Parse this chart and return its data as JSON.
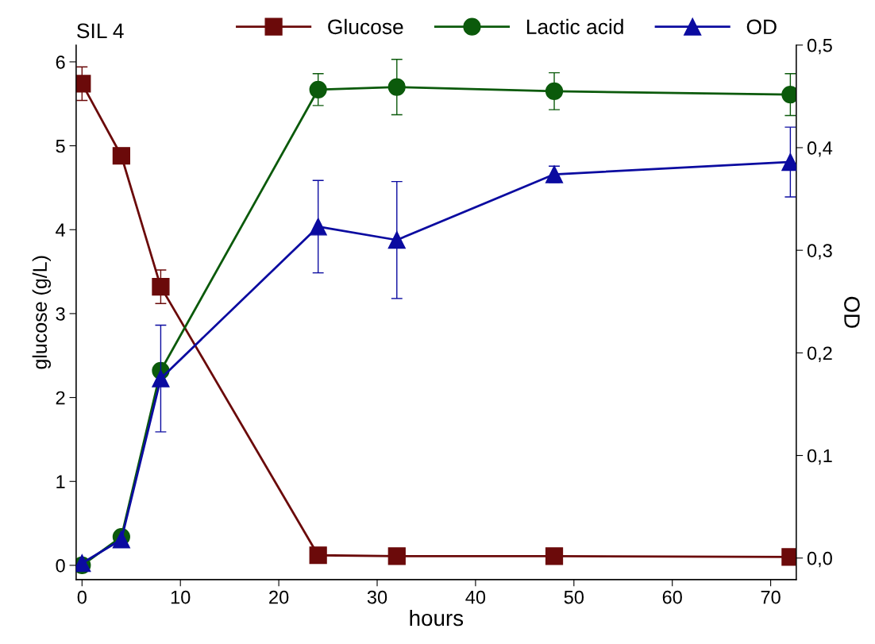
{
  "chart_data": {
    "type": "line",
    "title": "SIL 4",
    "xlabel": "hours",
    "ylabel": "glucose (g/L)",
    "y2label": "OD",
    "x": [
      0,
      4,
      8,
      24,
      32,
      48,
      72
    ],
    "series": [
      {
        "name": "Glucose",
        "color": "#6b0a0a",
        "marker": "square",
        "axis": "y",
        "values": [
          5.74,
          4.88,
          3.32,
          0.12,
          0.11,
          0.11,
          0.1
        ],
        "errors": [
          0.2,
          null,
          0.2,
          null,
          null,
          null,
          null
        ]
      },
      {
        "name": "Lactic acid",
        "color": "#0b5a0b",
        "marker": "circle",
        "axis": "y",
        "values": [
          0.0,
          0.34,
          2.32,
          5.67,
          5.7,
          5.65,
          5.61
        ],
        "errors": [
          null,
          null,
          null,
          0.19,
          0.33,
          0.22,
          0.25
        ]
      },
      {
        "name": "OD",
        "color": "#0b0ba0",
        "marker": "triangle",
        "axis": "y2",
        "values": [
          -0.005,
          0.018,
          0.175,
          0.323,
          0.31,
          0.374,
          0.386
        ],
        "errors": [
          null,
          null,
          0.052,
          0.045,
          0.057,
          0.008,
          0.034
        ]
      }
    ],
    "xlim": [
      -0.6,
      72.6
    ],
    "xticks": [
      0,
      10,
      20,
      30,
      40,
      50,
      60,
      70
    ],
    "ylim": [
      -0.17,
      6.2
    ],
    "yticks": [
      0,
      1,
      2,
      3,
      4,
      5,
      6
    ],
    "y2lim": [
      -0.021,
      0.5
    ],
    "y2ticks": [
      {
        "value": 0,
        "label": "0,0"
      },
      {
        "value": 0.1,
        "label": "0,1"
      },
      {
        "value": 0.2,
        "label": "0,2"
      },
      {
        "value": 0.3,
        "label": "0,3"
      },
      {
        "value": 0.4,
        "label": "0,4"
      },
      {
        "value": 0.5,
        "label": "0,5"
      }
    ],
    "legend": "top",
    "grid": false
  }
}
